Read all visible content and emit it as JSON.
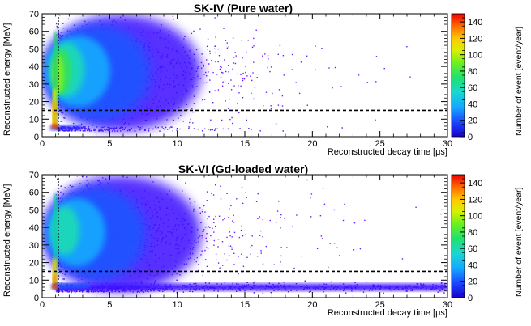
{
  "chart_data": [
    {
      "type": "heatmap",
      "title": "SK-IV (Pure water)",
      "xlabel": "Reconstructed decay time [μs]",
      "ylabel": "Reconstructed energy [MeV]",
      "zlabel": "Number of event [event/year]",
      "xlim": [
        0,
        30
      ],
      "ylim": [
        0,
        70
      ],
      "zlim": [
        0,
        150
      ],
      "x_ticks": [
        0,
        5,
        10,
        15,
        20,
        25,
        30
      ],
      "y_ticks": [
        0,
        10,
        20,
        30,
        40,
        50,
        60,
        70
      ],
      "z_ticks": [
        0,
        20,
        40,
        60,
        80,
        100,
        120,
        140
      ],
      "horizontal_cut_energy": 15,
      "vertical_cut_time": 1.2,
      "hotspot": {
        "x": 1.2,
        "y": 40
      },
      "secondary_band": null,
      "palette": "rainbow"
    },
    {
      "type": "heatmap",
      "title": "SK-VI (Gd-loaded water)",
      "xlabel": "Reconstructed decay time [μs]",
      "ylabel": "Reconstructed energy [MeV]",
      "zlabel": "Number of event [event/year]",
      "xlim": [
        0,
        30
      ],
      "ylim": [
        0,
        70
      ],
      "zlim": [
        0,
        150
      ],
      "x_ticks": [
        0,
        5,
        10,
        15,
        20,
        25,
        30
      ],
      "y_ticks": [
        0,
        10,
        20,
        30,
        40,
        50,
        60,
        70
      ],
      "z_ticks": [
        0,
        20,
        40,
        60,
        80,
        100,
        120,
        140
      ],
      "horizontal_cut_energy": 15,
      "vertical_cut_time": 1.2,
      "hotspot": {
        "x": 1.2,
        "y": 40
      },
      "secondary_band": {
        "y": 6,
        "x_from": 1,
        "x_to": 30
      },
      "palette": "rainbow"
    }
  ]
}
